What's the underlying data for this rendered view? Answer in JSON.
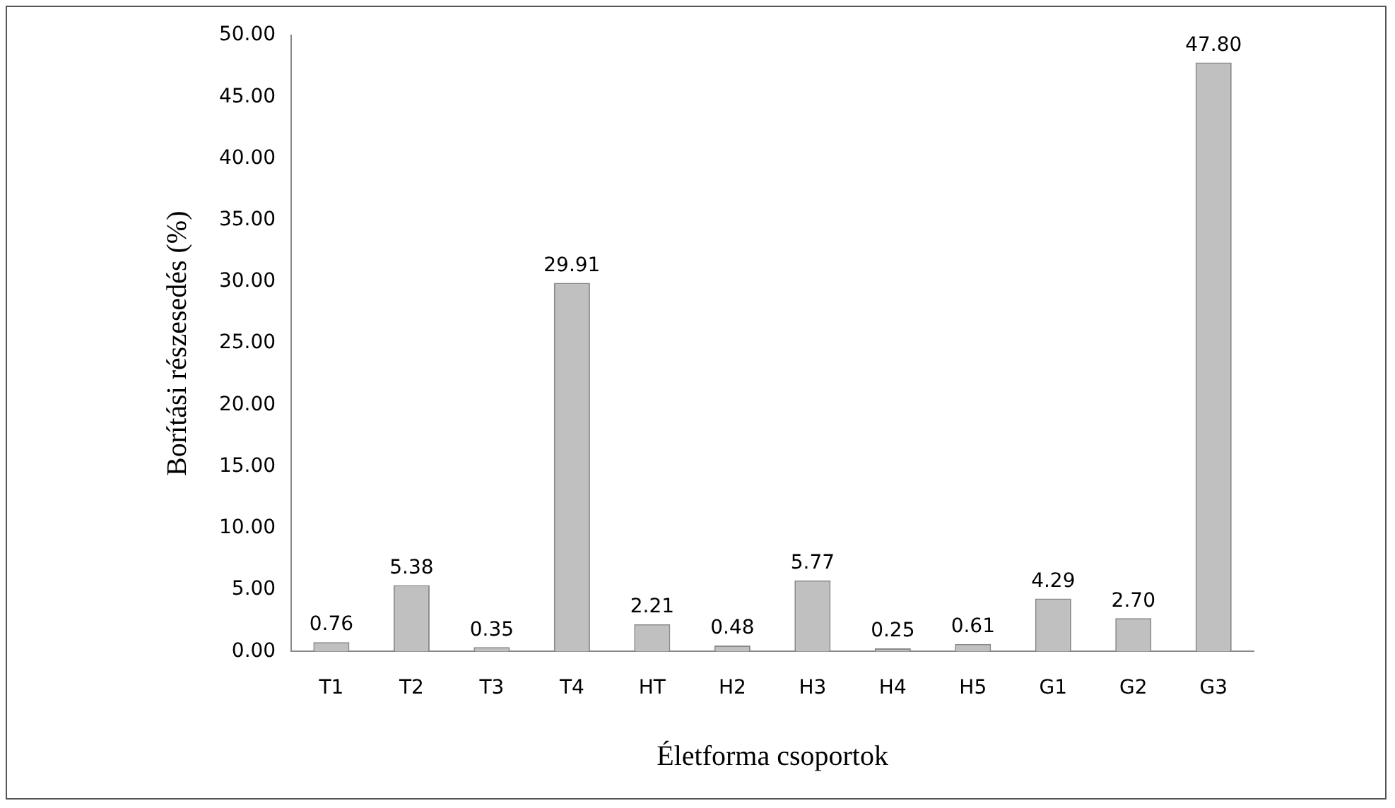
{
  "chart_data": {
    "type": "bar",
    "xlabel": "Életforma csoportok",
    "ylabel": "Borítási részesedés (%)",
    "categories": [
      "T1",
      "T2",
      "T3",
      "T4",
      "HT",
      "H2",
      "H3",
      "H4",
      "H5",
      "G1",
      "G2",
      "G3"
    ],
    "values": [
      0.76,
      5.38,
      0.35,
      29.91,
      2.21,
      0.48,
      5.77,
      0.25,
      0.61,
      4.29,
      2.7,
      47.8
    ],
    "value_labels": [
      "0.76",
      "5.38",
      "0.35",
      "29.91",
      "2.21",
      "0.48",
      "5.77",
      "0.25",
      "0.61",
      "4.29",
      "2.70",
      "47.80"
    ],
    "color": "#c0c0c0",
    "ylim": [
      0,
      50
    ],
    "yticks": [
      {
        "value": 0,
        "label": "0.00"
      },
      {
        "value": 5,
        "label": "5.00"
      },
      {
        "value": 10,
        "label": "10.00"
      },
      {
        "value": 15,
        "label": "15.00"
      },
      {
        "value": 20,
        "label": "20.00"
      },
      {
        "value": 25,
        "label": "25.00"
      },
      {
        "value": 30,
        "label": "30.00"
      },
      {
        "value": 35,
        "label": "35.00"
      },
      {
        "value": 40,
        "label": "40.00"
      },
      {
        "value": 45,
        "label": "45.00"
      },
      {
        "value": 50,
        "label": "50.00"
      }
    ],
    "grid": false,
    "legend": false
  }
}
